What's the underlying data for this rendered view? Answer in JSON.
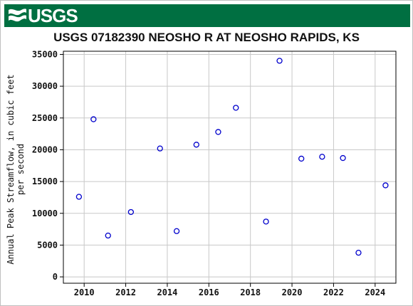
{
  "header": {
    "logo_text": "USGS",
    "logo_icon": "usgs-wave-icon",
    "banner_color": "#006f41"
  },
  "chart_data": {
    "type": "scatter",
    "title": "USGS 07182390 NEOSHO R AT NEOSHO RAPIDS, KS",
    "xlabel": "",
    "ylabel_lines": [
      "Annual Peak Streamflow, in cubic feet",
      "per second"
    ],
    "xlim": [
      2009,
      2025
    ],
    "ylim": [
      -1000,
      35500
    ],
    "xticks": [
      2010,
      2012,
      2014,
      2016,
      2018,
      2020,
      2022,
      2024
    ],
    "yticks": [
      0,
      5000,
      10000,
      15000,
      20000,
      25000,
      30000,
      35000
    ],
    "grid": true,
    "marker": "open-circle",
    "marker_color": "#0000cc",
    "series": [
      {
        "points": [
          {
            "x": 2009.75,
            "y": 12600
          },
          {
            "x": 2010.45,
            "y": 24800
          },
          {
            "x": 2011.15,
            "y": 6500
          },
          {
            "x": 2012.25,
            "y": 10200
          },
          {
            "x": 2013.65,
            "y": 20200
          },
          {
            "x": 2014.45,
            "y": 7200
          },
          {
            "x": 2015.4,
            "y": 20800
          },
          {
            "x": 2016.45,
            "y": 22800
          },
          {
            "x": 2017.3,
            "y": 26600
          },
          {
            "x": 2018.75,
            "y": 8700
          },
          {
            "x": 2019.4,
            "y": 34000
          },
          {
            "x": 2020.45,
            "y": 18600
          },
          {
            "x": 2021.45,
            "y": 18900
          },
          {
            "x": 2022.45,
            "y": 18700
          },
          {
            "x": 2023.2,
            "y": 3800
          },
          {
            "x": 2024.5,
            "y": 14400
          }
        ]
      }
    ]
  }
}
